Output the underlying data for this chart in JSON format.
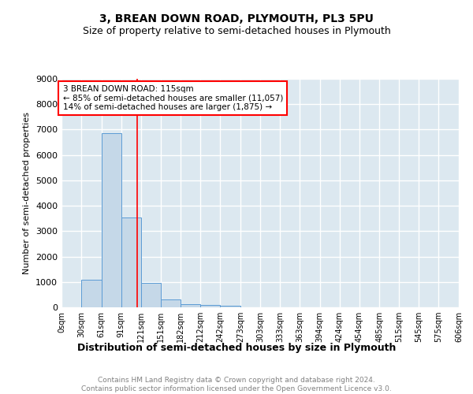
{
  "title": "3, BREAN DOWN ROAD, PLYMOUTH, PL3 5PU",
  "subtitle": "Size of property relative to semi-detached houses in Plymouth",
  "xlabel": "Distribution of semi-detached houses by size in Plymouth",
  "ylabel": "Number of semi-detached properties",
  "bar_heights": [
    0,
    1100,
    6850,
    3550,
    950,
    320,
    130,
    80,
    60,
    0,
    0,
    0,
    0,
    0,
    0,
    0,
    0,
    0,
    0,
    0
  ],
  "bin_edges": [
    0,
    30,
    61,
    91,
    121,
    151,
    182,
    212,
    242,
    273,
    303,
    333,
    363,
    394,
    424,
    454,
    485,
    515,
    545,
    575,
    606
  ],
  "tick_labels": [
    "0sqm",
    "30sqm",
    "61sqm",
    "91sqm",
    "121sqm",
    "151sqm",
    "182sqm",
    "212sqm",
    "242sqm",
    "273sqm",
    "303sqm",
    "333sqm",
    "363sqm",
    "394sqm",
    "424sqm",
    "454sqm",
    "485sqm",
    "515sqm",
    "545sqm",
    "575sqm",
    "606sqm"
  ],
  "bar_color": "#c5d8e8",
  "bar_edge_color": "#5b9bd5",
  "vline_x": 115,
  "vline_color": "red",
  "ylim": [
    0,
    9000
  ],
  "annotation_text": "3 BREAN DOWN ROAD: 115sqm\n← 85% of semi-detached houses are smaller (11,057)\n14% of semi-detached houses are larger (1,875) →",
  "annotation_box_color": "white",
  "annotation_box_edge": "red",
  "footer_line1": "Contains HM Land Registry data © Crown copyright and database right 2024.",
  "footer_line2": "Contains public sector information licensed under the Open Government Licence v3.0.",
  "bg_color": "#dce8f0",
  "grid_color": "white",
  "title_fontsize": 10,
  "subtitle_fontsize": 9,
  "xlabel_fontsize": 9,
  "ylabel_fontsize": 8,
  "tick_fontsize": 7,
  "annot_fontsize": 7.5,
  "footer_fontsize": 6.5
}
